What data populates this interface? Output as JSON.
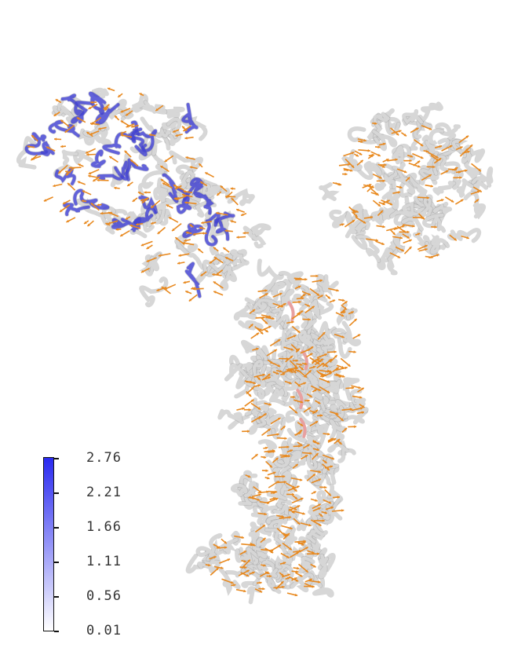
{
  "colors": {
    "background": "#ffffff",
    "tube_low": "#d7d7d7",
    "tube_high": "#3b3bd9",
    "arrow": "#e8891f",
    "highlight": "#e8a0a0"
  },
  "colorbar": {
    "min_color": "#ffffff",
    "max_color": "#2a2af0",
    "labels": [
      "2.76",
      "2.21",
      "1.66",
      "1.11",
      "0.56",
      "0.01"
    ]
  }
}
